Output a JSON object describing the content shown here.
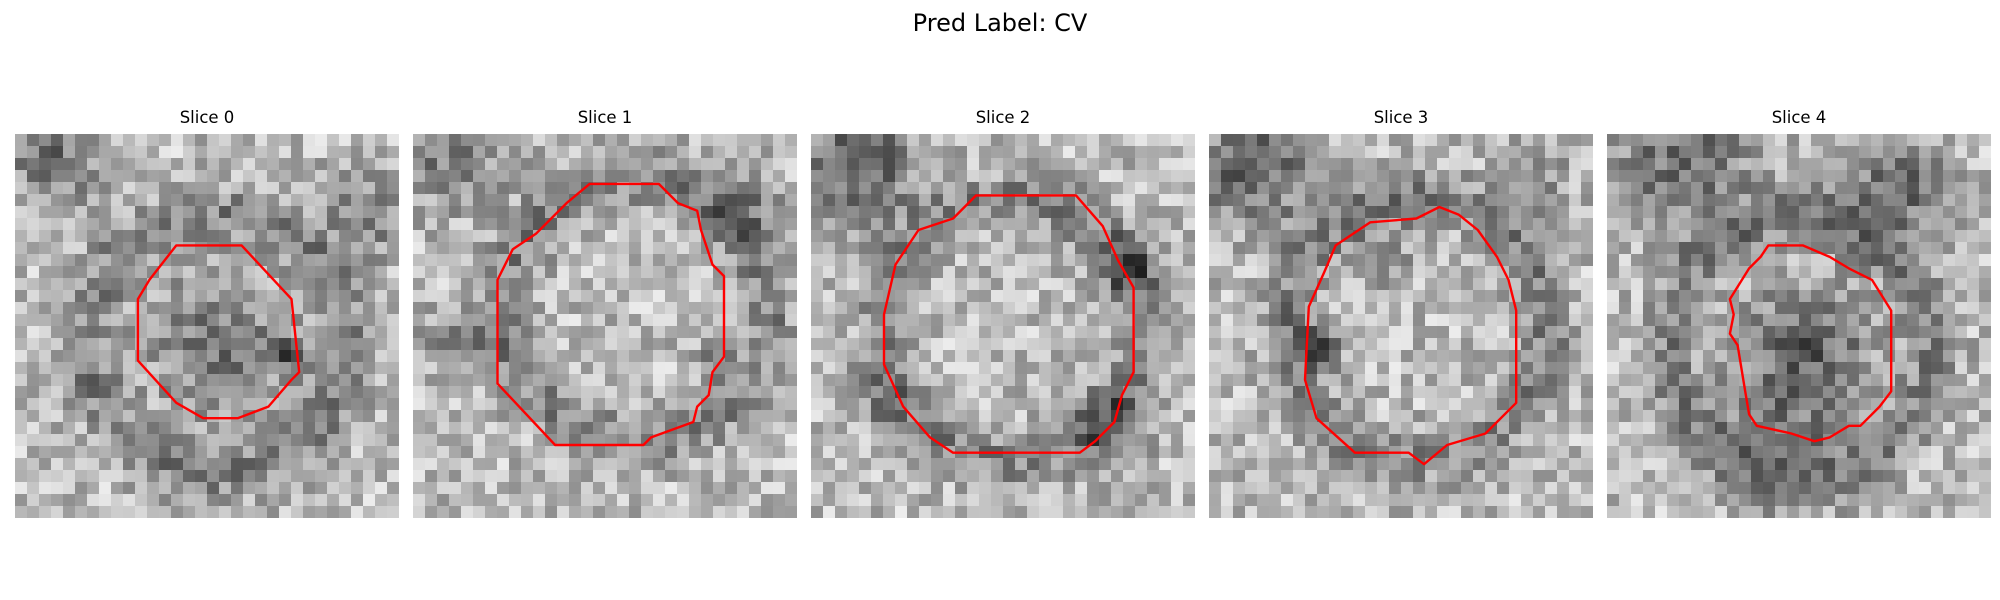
{
  "figure": {
    "title": "Pred Label: CV",
    "outline_color": "#ff0000"
  },
  "slices": [
    {
      "title": "Slice 0",
      "contour": [
        [
          0.42,
          0.29
        ],
        [
          0.59,
          0.29
        ],
        [
          0.72,
          0.43
        ],
        [
          0.74,
          0.62
        ],
        [
          0.72,
          0.64
        ],
        [
          0.66,
          0.71
        ],
        [
          0.58,
          0.74
        ],
        [
          0.49,
          0.74
        ],
        [
          0.42,
          0.7
        ],
        [
          0.32,
          0.59
        ],
        [
          0.32,
          0.43
        ],
        [
          0.35,
          0.38
        ]
      ],
      "dark_blobs": [
        [
          0.1,
          0.05,
          0.14,
          0.6
        ],
        [
          0.92,
          0.2,
          0.12,
          0.5
        ],
        [
          0.52,
          0.55,
          0.18,
          0.6
        ],
        [
          0.7,
          0.57,
          0.05,
          0.9
        ]
      ]
    },
    {
      "title": "Slice 1",
      "contour": [
        [
          0.46,
          0.13
        ],
        [
          0.64,
          0.13
        ],
        [
          0.69,
          0.18
        ],
        [
          0.74,
          0.2
        ],
        [
          0.75,
          0.25
        ],
        [
          0.78,
          0.34
        ],
        [
          0.81,
          0.37
        ],
        [
          0.81,
          0.58
        ],
        [
          0.78,
          0.62
        ],
        [
          0.77,
          0.68
        ],
        [
          0.74,
          0.71
        ],
        [
          0.73,
          0.75
        ],
        [
          0.62,
          0.79
        ],
        [
          0.6,
          0.81
        ],
        [
          0.37,
          0.81
        ],
        [
          0.22,
          0.65
        ],
        [
          0.22,
          0.38
        ],
        [
          0.26,
          0.3
        ],
        [
          0.32,
          0.26
        ],
        [
          0.4,
          0.18
        ]
      ],
      "dark_blobs": [
        [
          0.1,
          0.05,
          0.14,
          0.6
        ],
        [
          0.85,
          0.2,
          0.12,
          0.4
        ],
        [
          0.13,
          0.55,
          0.1,
          0.5
        ],
        [
          0.78,
          0.6,
          0.05,
          0.5
        ]
      ]
    },
    {
      "title": "Slice 2",
      "contour": [
        [
          0.43,
          0.16
        ],
        [
          0.69,
          0.16
        ],
        [
          0.76,
          0.24
        ],
        [
          0.8,
          0.33
        ],
        [
          0.84,
          0.4
        ],
        [
          0.84,
          0.62
        ],
        [
          0.81,
          0.68
        ],
        [
          0.79,
          0.75
        ],
        [
          0.74,
          0.8
        ],
        [
          0.7,
          0.83
        ],
        [
          0.37,
          0.83
        ],
        [
          0.31,
          0.79
        ],
        [
          0.24,
          0.71
        ],
        [
          0.19,
          0.6
        ],
        [
          0.19,
          0.47
        ],
        [
          0.22,
          0.34
        ],
        [
          0.28,
          0.25
        ],
        [
          0.37,
          0.22
        ]
      ],
      "dark_blobs": [
        [
          0.12,
          0.08,
          0.16,
          0.8
        ],
        [
          0.82,
          0.35,
          0.08,
          0.7
        ],
        [
          0.78,
          0.75,
          0.1,
          0.6
        ],
        [
          0.18,
          0.7,
          0.08,
          0.4
        ]
      ]
    },
    {
      "title": "Slice 3",
      "contour": [
        [
          0.42,
          0.23
        ],
        [
          0.54,
          0.22
        ],
        [
          0.6,
          0.19
        ],
        [
          0.65,
          0.21
        ],
        [
          0.7,
          0.25
        ],
        [
          0.75,
          0.32
        ],
        [
          0.78,
          0.38
        ],
        [
          0.8,
          0.46
        ],
        [
          0.8,
          0.7
        ],
        [
          0.72,
          0.78
        ],
        [
          0.62,
          0.81
        ],
        [
          0.56,
          0.86
        ],
        [
          0.52,
          0.83
        ],
        [
          0.38,
          0.83
        ],
        [
          0.28,
          0.74
        ],
        [
          0.25,
          0.64
        ],
        [
          0.26,
          0.45
        ],
        [
          0.3,
          0.36
        ],
        [
          0.33,
          0.29
        ]
      ],
      "dark_blobs": [
        [
          0.12,
          0.08,
          0.16,
          0.8
        ],
        [
          0.28,
          0.55,
          0.06,
          0.8
        ],
        [
          0.85,
          0.1,
          0.1,
          0.4
        ],
        [
          0.45,
          0.3,
          0.1,
          0.3
        ]
      ]
    },
    {
      "title": "Slice 4",
      "contour": [
        [
          0.42,
          0.29
        ],
        [
          0.51,
          0.29
        ],
        [
          0.58,
          0.32
        ],
        [
          0.63,
          0.35
        ],
        [
          0.69,
          0.38
        ],
        [
          0.74,
          0.46
        ],
        [
          0.74,
          0.67
        ],
        [
          0.71,
          0.71
        ],
        [
          0.66,
          0.76
        ],
        [
          0.63,
          0.76
        ],
        [
          0.58,
          0.79
        ],
        [
          0.54,
          0.8
        ],
        [
          0.48,
          0.78
        ],
        [
          0.39,
          0.76
        ],
        [
          0.37,
          0.73
        ],
        [
          0.36,
          0.67
        ],
        [
          0.34,
          0.55
        ],
        [
          0.32,
          0.52
        ],
        [
          0.33,
          0.47
        ],
        [
          0.32,
          0.43
        ],
        [
          0.37,
          0.35
        ],
        [
          0.4,
          0.32
        ]
      ],
      "dark_blobs": [
        [
          0.2,
          0.08,
          0.18,
          0.7
        ],
        [
          0.75,
          0.15,
          0.14,
          0.7
        ],
        [
          0.52,
          0.55,
          0.16,
          0.75
        ],
        [
          0.45,
          0.8,
          0.18,
          0.5
        ]
      ]
    }
  ]
}
